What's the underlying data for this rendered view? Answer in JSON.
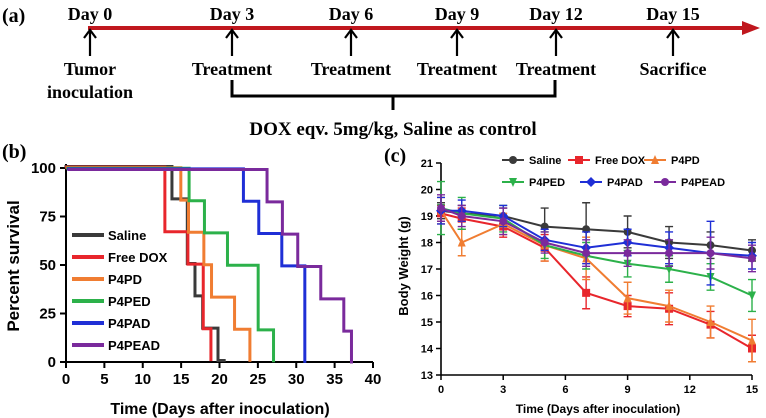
{
  "panel_a": {
    "label": "(a)",
    "events": [
      {
        "day": "Day 0",
        "lines": [
          "Tumor",
          "inoculation"
        ]
      },
      {
        "day": "Day 3",
        "lines": [
          "Treatment"
        ]
      },
      {
        "day": "Day 6",
        "lines": [
          "Treatment"
        ]
      },
      {
        "day": "Day 9",
        "lines": [
          "Treatment"
        ]
      },
      {
        "day": "Day 12",
        "lines": [
          "Treatment"
        ]
      },
      {
        "day": "Day 15",
        "lines": [
          "Sacrifice"
        ]
      }
    ],
    "dose_note": "DOX eqv. 5mg/kg, Saline as control",
    "colors": {
      "timeline": "#c0171e",
      "text": "#000000"
    }
  },
  "chart_data": [
    {
      "panel": "(b)",
      "type": "line",
      "subtype": "kaplan-meier-step",
      "xlabel": "Time (Days after inoculation)",
      "ylabel": "Percent survival",
      "xlim": [
        0,
        40
      ],
      "ylim": [
        0,
        100
      ],
      "xticks": [
        0,
        5,
        10,
        15,
        20,
        25,
        30,
        35,
        40
      ],
      "yticks": [
        0,
        25,
        50,
        75,
        100
      ],
      "legend_position": "left-bottom-inside",
      "series": [
        {
          "name": "Saline",
          "color": "#3a3a3a",
          "x": [
            0,
            14,
            14,
            16,
            16,
            17,
            17,
            18,
            18,
            20,
            20,
            21,
            21
          ],
          "y": [
            100,
            100,
            83.3,
            83.3,
            50,
            50,
            33.3,
            33.3,
            16.7,
            16.7,
            0,
            0,
            0
          ]
        },
        {
          "name": "Free DOX",
          "color": "#e8262c",
          "x": [
            0,
            13,
            13,
            16,
            16,
            18,
            18,
            19,
            19
          ],
          "y": [
            100,
            100,
            66.7,
            66.7,
            50,
            50,
            16.7,
            16.7,
            0
          ]
        },
        {
          "name": "P4PD",
          "color": "#f07d32",
          "x": [
            0,
            15,
            15,
            16,
            16,
            18,
            18,
            19,
            19,
            22,
            22,
            24,
            24
          ],
          "y": [
            100,
            100,
            83.3,
            83.3,
            66.7,
            66.7,
            50,
            50,
            33.3,
            33.3,
            16.7,
            16.7,
            0
          ]
        },
        {
          "name": "P4PED",
          "color": "#2cb14a",
          "x": [
            0,
            16,
            16,
            18,
            18,
            21,
            21,
            25,
            25,
            26,
            26,
            27,
            27
          ],
          "y": [
            100,
            100,
            83.3,
            83.3,
            66.7,
            66.7,
            50,
            50,
            16.7,
            16.7,
            16.7,
            16.7,
            0
          ]
        },
        {
          "name": "P4PAD",
          "color": "#1f2fd6",
          "x": [
            0,
            23,
            23,
            25,
            25,
            28,
            28,
            31,
            31
          ],
          "y": [
            100,
            100,
            83.3,
            83.3,
            66.7,
            66.7,
            50,
            50,
            0
          ]
        },
        {
          "name": "P4PEAD",
          "color": "#7a2a9c",
          "x": [
            0,
            26,
            26,
            28,
            28,
            30,
            30,
            33,
            33,
            36,
            36,
            37,
            37
          ],
          "y": [
            100,
            100,
            83.3,
            83.3,
            66.7,
            66.7,
            50,
            50,
            33.3,
            33.3,
            16.7,
            16.7,
            0
          ]
        }
      ]
    },
    {
      "panel": "(c)",
      "type": "line",
      "xlabel": "Time (Days after inoculation)",
      "ylabel": "Body Weight (g)",
      "xlim": [
        0,
        15
      ],
      "ylim": [
        13,
        21
      ],
      "xticks": [
        0,
        3,
        6,
        9,
        12,
        15
      ],
      "yticks": [
        13,
        14,
        15,
        16,
        17,
        18,
        19,
        20,
        21
      ],
      "x": [
        0,
        1,
        3,
        5,
        7,
        9,
        11,
        13,
        15
      ],
      "legend_position": "top",
      "series": [
        {
          "name": "Saline",
          "color": "#3a3a3a",
          "marker": "circle",
          "values": [
            19.2,
            19.1,
            19.0,
            18.6,
            18.5,
            18.4,
            18.0,
            17.9,
            17.7
          ],
          "errors": [
            0.3,
            0.3,
            0.3,
            0.7,
            1.0,
            0.6,
            0.6,
            0.5,
            0.4
          ]
        },
        {
          "name": "Free DOX",
          "color": "#e8262c",
          "marker": "square",
          "values": [
            19.1,
            18.9,
            18.6,
            17.8,
            16.1,
            15.6,
            15.5,
            14.9,
            14.0
          ],
          "errors": [
            0.3,
            0.4,
            0.4,
            0.5,
            0.6,
            0.4,
            0.6,
            0.5,
            0.5
          ]
        },
        {
          "name": "P4PD",
          "color": "#f07d32",
          "marker": "triangle-up",
          "values": [
            19.2,
            18.0,
            18.7,
            17.9,
            17.4,
            15.9,
            15.6,
            15.0,
            14.3
          ],
          "errors": [
            0.5,
            0.5,
            0.4,
            0.6,
            0.8,
            0.6,
            0.6,
            0.6,
            0.8
          ]
        },
        {
          "name": "P4PED",
          "color": "#2cb14a",
          "marker": "triangle-down",
          "values": [
            19.3,
            19.1,
            18.9,
            17.9,
            17.5,
            17.2,
            17.0,
            16.7,
            16.0
          ],
          "errors": [
            1.0,
            0.6,
            0.5,
            0.5,
            0.5,
            0.5,
            0.5,
            0.5,
            0.6
          ]
        },
        {
          "name": "P4PAD",
          "color": "#1f2fd6",
          "marker": "diamond",
          "values": [
            19.2,
            19.2,
            19.0,
            18.1,
            17.8,
            18.0,
            17.8,
            17.6,
            17.5
          ],
          "errors": [
            0.5,
            0.4,
            0.4,
            0.4,
            0.6,
            0.5,
            0.6,
            1.2,
            0.5
          ]
        },
        {
          "name": "P4PEAD",
          "color": "#7a2a9c",
          "marker": "circle",
          "values": [
            19.3,
            19.0,
            18.8,
            18.0,
            17.6,
            17.6,
            17.6,
            17.6,
            17.4
          ],
          "errors": [
            0.5,
            0.4,
            0.5,
            0.4,
            0.5,
            0.5,
            0.5,
            0.6,
            0.5
          ]
        }
      ]
    }
  ]
}
